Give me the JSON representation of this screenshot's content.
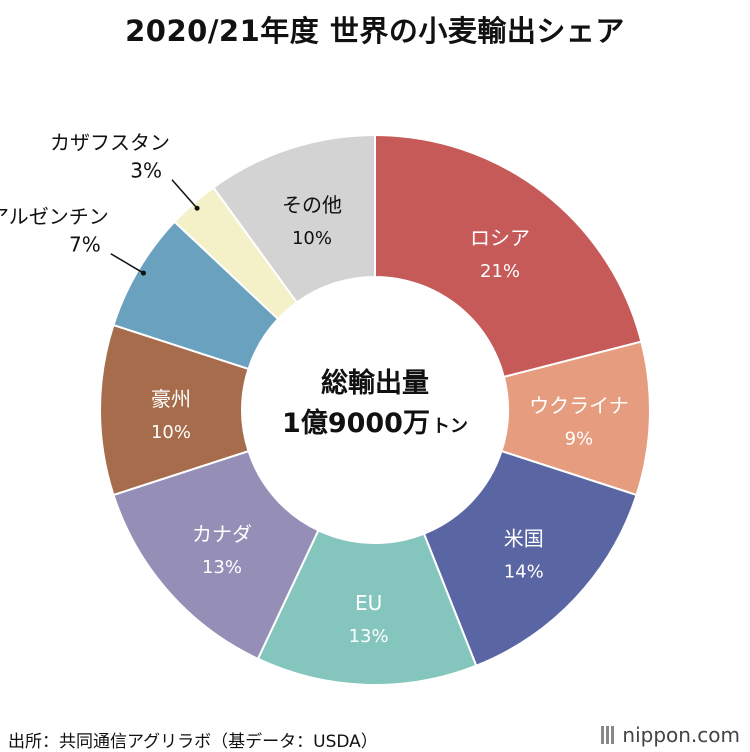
{
  "title": "2020/21年度 世界の小麦輸出シェア",
  "center": {
    "line1": "総輸出量",
    "line2": "1億9000万",
    "unit": "トン"
  },
  "source": "出所：共同通信アグリラボ（基データ：USDA）",
  "brand": "nippon.com",
  "chart_data": {
    "type": "pie",
    "title": "2020/21年度 世界の小麦輸出シェア",
    "unit": "%",
    "slices": [
      {
        "name": "ロシア",
        "value": 21,
        "label": "21%",
        "color": "#c65a58"
      },
      {
        "name": "ウクライナ",
        "value": 9,
        "label": "9%",
        "color": "#e69d7f"
      },
      {
        "name": "米国",
        "value": 14,
        "label": "14%",
        "color": "#5a66a4"
      },
      {
        "name": "EU",
        "value": 13,
        "label": "13%",
        "color": "#84c6bd"
      },
      {
        "name": "カナダ",
        "value": 13,
        "label": "13%",
        "color": "#958fb7"
      },
      {
        "name": "豪州",
        "value": 10,
        "label": "10%",
        "color": "#a66c4c"
      },
      {
        "name": "アルゼンチン",
        "value": 7,
        "label": "7%",
        "color": "#6aa1be"
      },
      {
        "name": "カザフスタン",
        "value": 3,
        "label": "3%",
        "color": "#f4f0c8"
      },
      {
        "name": "その他",
        "value": 10,
        "label": "10%",
        "color": "#d3d3d3"
      }
    ]
  }
}
